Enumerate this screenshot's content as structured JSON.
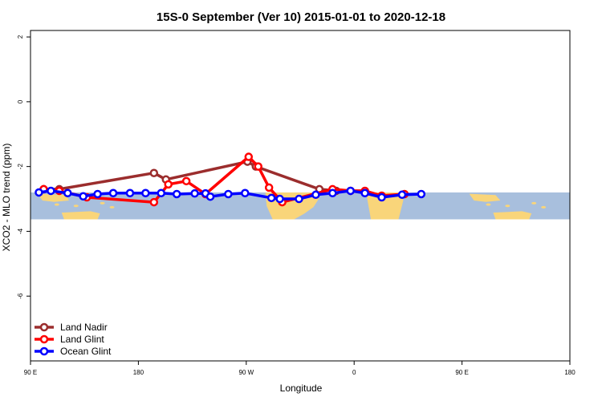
{
  "chart_data": {
    "type": "line",
    "title": "15S-0 September (Ver 10)   2015-01-01 to 2020-12-18",
    "xlabel": "Longitude",
    "ylabel": "XCO2 - MLO trend (ppm)",
    "ylim": [
      -8,
      2.2
    ],
    "y_ticks": [
      2,
      0,
      -2,
      -4,
      -6
    ],
    "y_tick_labels": [
      "2",
      "0",
      "-2",
      "-4",
      "-6"
    ],
    "xlim": [
      90,
      450
    ],
    "x_ticks": [
      90,
      180,
      270,
      360,
      450,
      540
    ],
    "x_tick_labels": [
      "90 E",
      "180",
      "90 W",
      "0",
      "90 E",
      "180"
    ],
    "map_band": {
      "lat_range": [
        -15,
        0
      ],
      "y_range": [
        -3.63,
        -2.8
      ],
      "ocean_color": "#a8bfdd",
      "land_color": "#f9d57a"
    },
    "grid": false,
    "legend_position": "bottom-left",
    "series": [
      {
        "name": "Land Nadir",
        "color": "#9b2d2d",
        "x": [
          101,
          114,
          193,
          203,
          271,
          278,
          331,
          345
        ],
        "y": [
          -2.7,
          -2.7,
          -2.2,
          -2.4,
          -1.85,
          -2.0,
          -2.7,
          -2.75
        ]
      },
      {
        "name": "Land Glint",
        "color": "#ff0000",
        "x": [
          101,
          114,
          137,
          193,
          205,
          220,
          236,
          272,
          280,
          289,
          300,
          342,
          357,
          369,
          383,
          402
        ],
        "y": [
          -2.7,
          -2.75,
          -2.95,
          -3.1,
          -2.55,
          -2.45,
          -2.85,
          -1.7,
          -2.0,
          -2.65,
          -3.1,
          -2.7,
          -2.75,
          -2.75,
          -2.9,
          -2.85
        ]
      },
      {
        "name": "Ocean Glint",
        "color": "#0000ff",
        "x": [
          97,
          107,
          121,
          134,
          146,
          159,
          173,
          186,
          199,
          212,
          227,
          236,
          240,
          255,
          269,
          291,
          298,
          314,
          328,
          342,
          357,
          369,
          383,
          400,
          416
        ],
        "y": [
          -2.8,
          -2.75,
          -2.82,
          -2.92,
          -2.85,
          -2.82,
          -2.82,
          -2.82,
          -2.82,
          -2.85,
          -2.83,
          -2.83,
          -2.93,
          -2.85,
          -2.82,
          -2.97,
          -3.0,
          -3.0,
          -2.87,
          -2.82,
          -2.75,
          -2.82,
          -2.95,
          -2.87,
          -2.85
        ]
      }
    ]
  }
}
